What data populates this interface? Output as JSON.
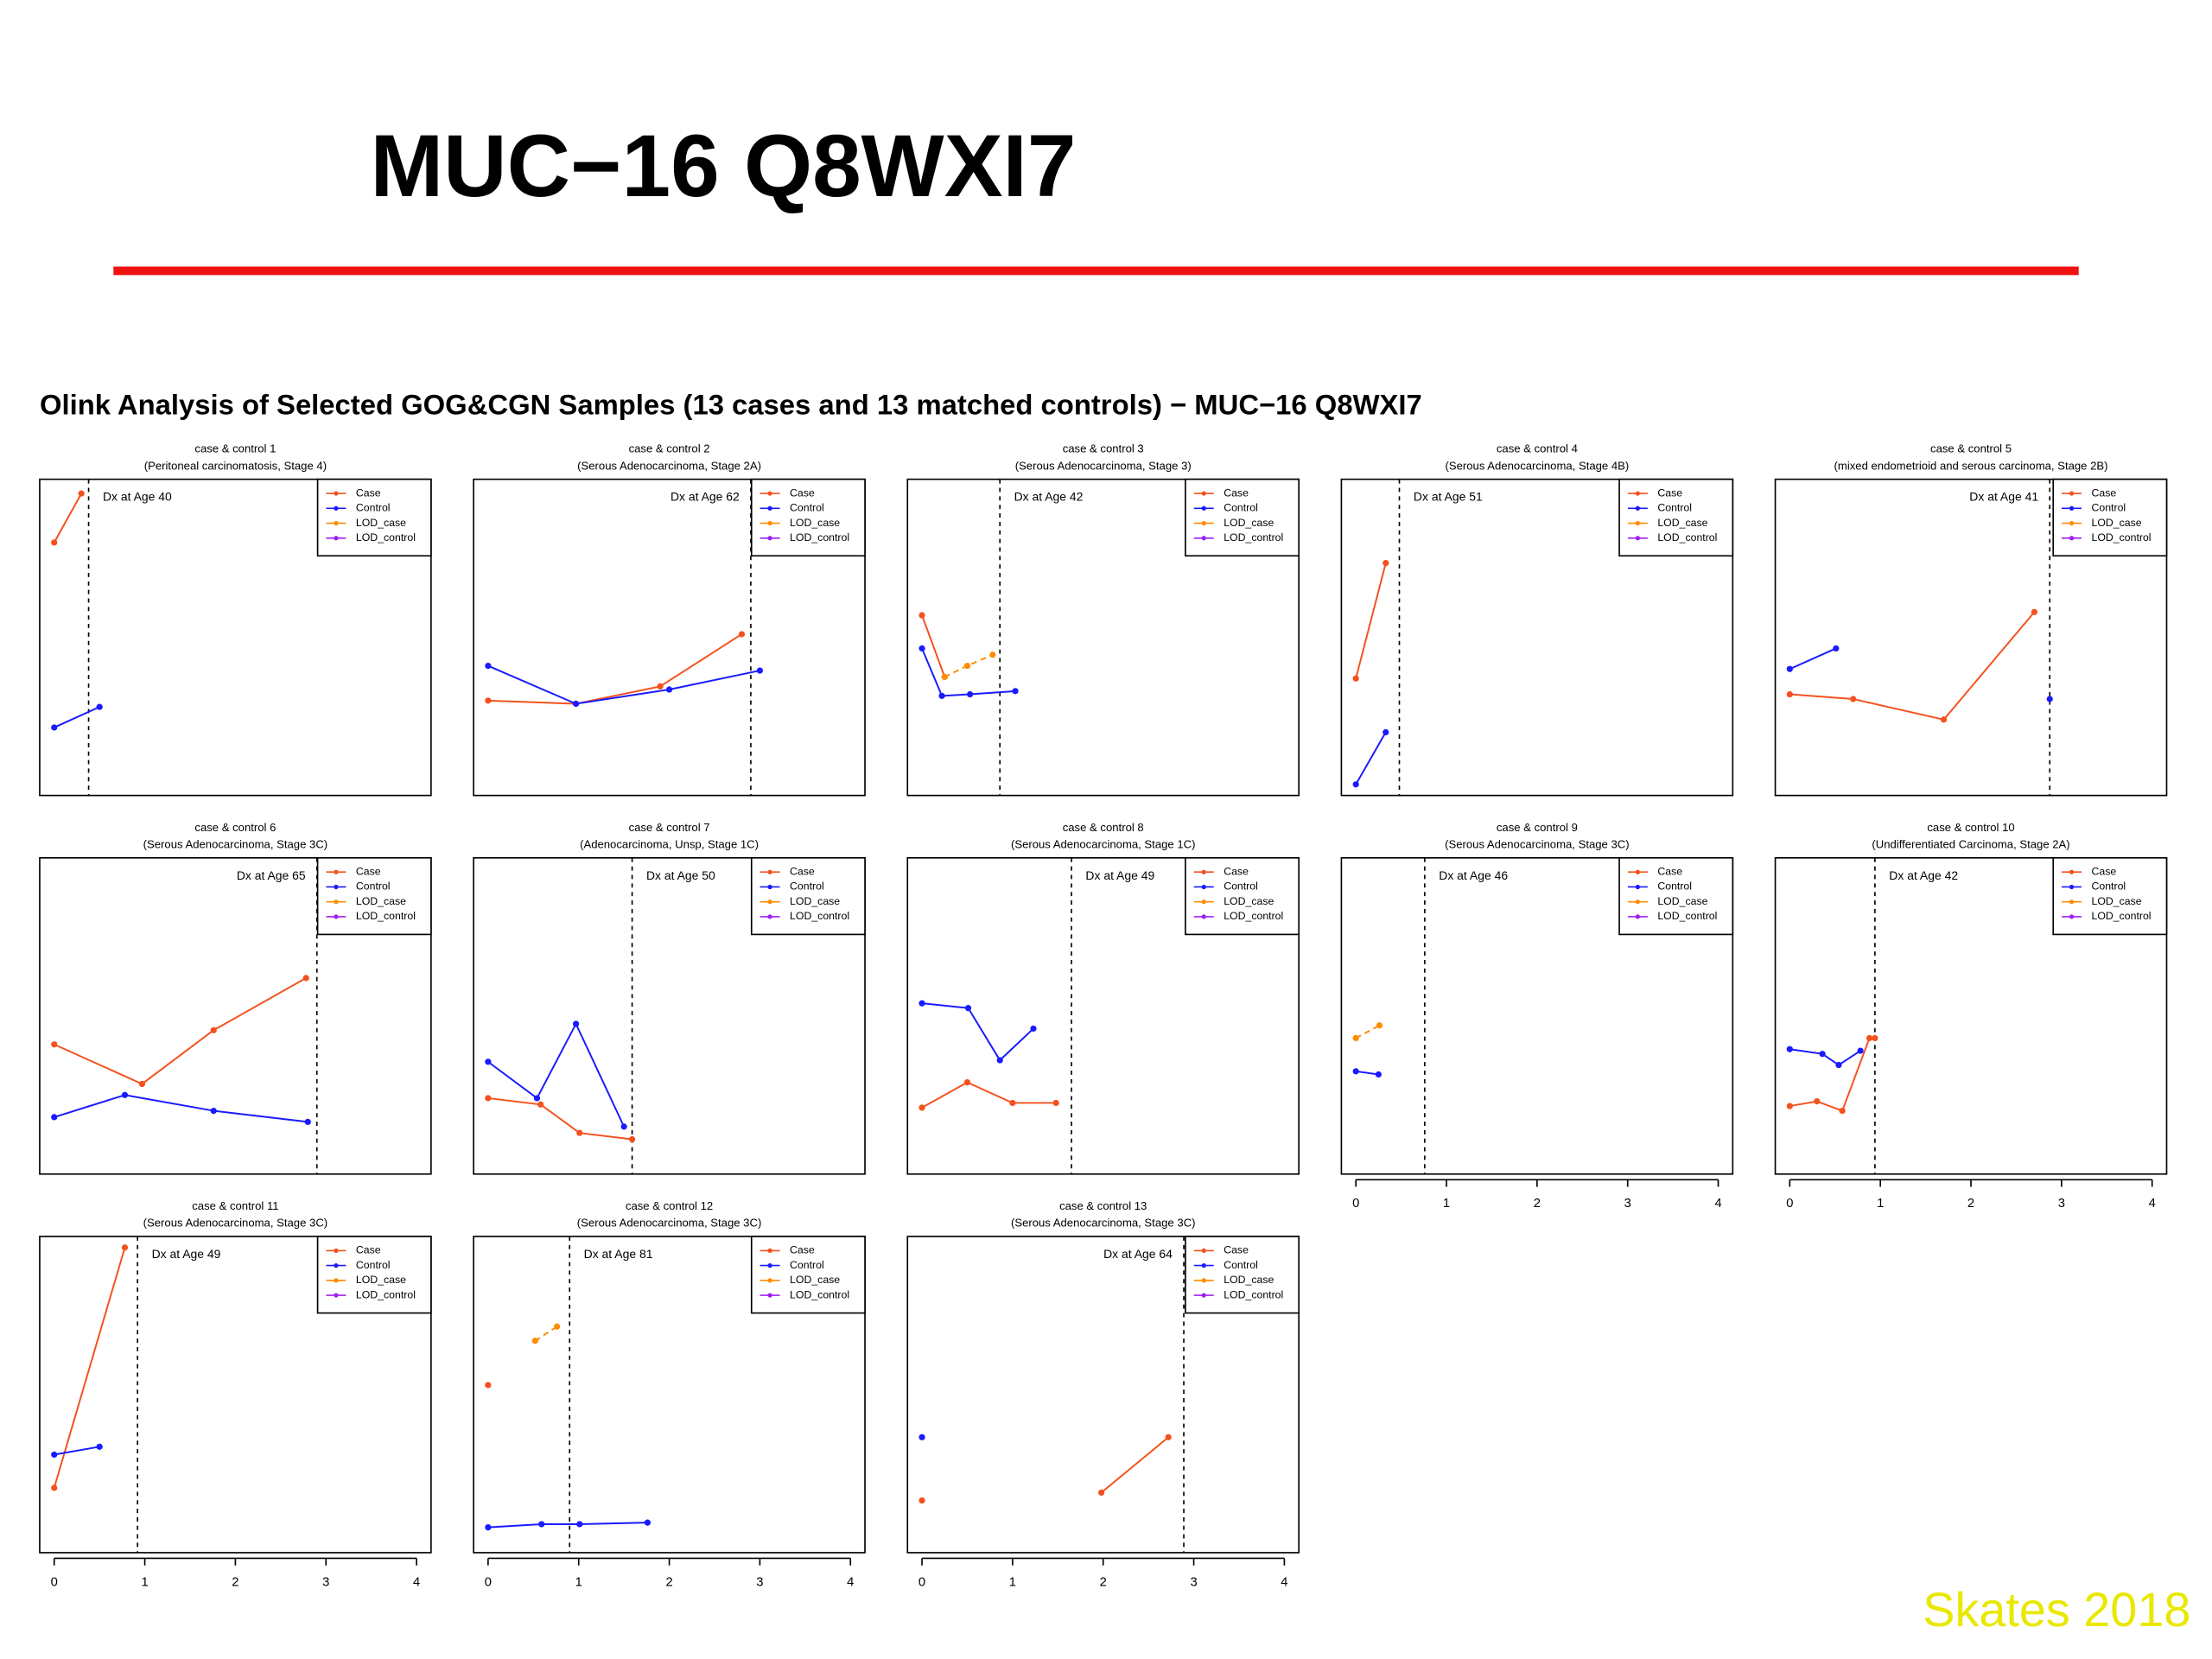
{
  "header": {
    "title": "MUC−16 Q8WXI7",
    "subtitle": "Olink Analysis of Selected GOG&CGN Samples (13 cases and 13 matched controls) − MUC−16 Q8WXI7"
  },
  "footer": "Skates 2018",
  "chart_data": [
    {
      "type": "line",
      "title": "case & control 1",
      "subtitle": "(Peritoneal carcinomatosis, Stage 4)",
      "annotation": "Dx at Age 40",
      "dx": 0.38,
      "xlim": [
        -0.16,
        4.16
      ],
      "ylim": [
        0,
        1
      ],
      "legend": "top-right",
      "series": [
        {
          "name": "Case",
          "color": "#f4511e",
          "x": [
            0,
            0.3
          ],
          "values": [
            0.8,
            0.955
          ]
        },
        {
          "name": "Control",
          "color": "#1a1aff",
          "x": [
            0,
            0.5
          ],
          "values": [
            0.215,
            0.28
          ]
        },
        {
          "name": "LOD_case",
          "color": "#ff8c00",
          "x": [],
          "values": [],
          "dashed": true
        },
        {
          "name": "LOD_control",
          "color": "#a020f0",
          "x": [],
          "values": [],
          "dashed": true
        }
      ]
    },
    {
      "type": "line",
      "title": "case & control 2",
      "subtitle": "(Serous Adenocarcinoma, Stage 2A)",
      "annotation": "Dx at Age 62",
      "dx": 2.9,
      "xlim": [
        -0.16,
        4.16
      ],
      "ylim": [
        0,
        1
      ],
      "legend": "top-right",
      "series": [
        {
          "name": "Case",
          "color": "#f4511e",
          "x": [
            0,
            0.97,
            1.9,
            2.8
          ],
          "values": [
            0.3,
            0.29,
            0.345,
            0.51
          ]
        },
        {
          "name": "Control",
          "color": "#1a1aff",
          "x": [
            0,
            0.97,
            2,
            3
          ],
          "values": [
            0.41,
            0.29,
            0.335,
            0.395
          ]
        },
        {
          "name": "LOD_case",
          "color": "#ff8c00",
          "x": [],
          "values": [],
          "dashed": true
        },
        {
          "name": "LOD_control",
          "color": "#a020f0",
          "x": [],
          "values": [],
          "dashed": true
        }
      ]
    },
    {
      "type": "line",
      "title": "case & control 3",
      "subtitle": "(Serous Adenocarcinoma, Stage 3)",
      "annotation": "Dx at Age 42",
      "dx": 0.86,
      "xlim": [
        -0.16,
        4.16
      ],
      "ylim": [
        0,
        1
      ],
      "legend": "top-right",
      "series": [
        {
          "name": "Case",
          "color": "#f4511e",
          "x": [
            0,
            0.25
          ],
          "values": [
            0.57,
            0.375
          ]
        },
        {
          "name": "Control",
          "color": "#1a1aff",
          "x": [
            0,
            0.22,
            0.53,
            1.03
          ],
          "values": [
            0.465,
            0.315,
            0.32,
            0.33
          ]
        },
        {
          "name": "LOD_case",
          "color": "#ff8c00",
          "x": [
            0.25,
            0.5,
            0.78
          ],
          "values": [
            0.375,
            0.41,
            0.445
          ],
          "dashed": true
        },
        {
          "name": "LOD_control",
          "color": "#a020f0",
          "x": [],
          "values": [],
          "dashed": true
        }
      ]
    },
    {
      "type": "line",
      "title": "case & control 4",
      "subtitle": "(Serous Adenocarcinoma, Stage 4B)",
      "annotation": "Dx at Age 51",
      "dx": 0.48,
      "xlim": [
        -0.16,
        4.16
      ],
      "ylim": [
        0,
        1
      ],
      "legend": "top-right",
      "series": [
        {
          "name": "Case",
          "color": "#f4511e",
          "x": [
            0,
            0.33
          ],
          "values": [
            0.37,
            0.735
          ]
        },
        {
          "name": "Control",
          "color": "#1a1aff",
          "x": [
            0,
            0.33
          ],
          "values": [
            0.035,
            0.2
          ]
        },
        {
          "name": "LOD_case",
          "color": "#ff8c00",
          "x": [],
          "values": [],
          "dashed": true
        },
        {
          "name": "LOD_control",
          "color": "#a020f0",
          "x": [],
          "values": [],
          "dashed": true
        }
      ]
    },
    {
      "type": "line",
      "title": "case & control 5",
      "subtitle": "(mixed endometrioid and serous carcinoma, Stage 2B)",
      "annotation": "Dx at Age 41",
      "dx": 2.87,
      "xlim": [
        -0.16,
        4.16
      ],
      "ylim": [
        0,
        1
      ],
      "legend": "top-right",
      "series": [
        {
          "name": "Case",
          "color": "#f4511e",
          "x": [
            0,
            0.7,
            1.7,
            2.7
          ],
          "values": [
            0.32,
            0.305,
            0.24,
            0.58
          ]
        },
        {
          "name": "Control",
          "color": "#1a1aff",
          "x": [
            0,
            0.51,
            null,
            2.87
          ],
          "values": [
            0.4,
            0.465,
            null,
            0.305
          ]
        },
        {
          "name": "LOD_case",
          "color": "#ff8c00",
          "x": [],
          "values": [],
          "dashed": true
        },
        {
          "name": "LOD_control",
          "color": "#a020f0",
          "x": [],
          "values": [],
          "dashed": true
        }
      ]
    },
    {
      "type": "line",
      "title": "case & control 6",
      "subtitle": "(Serous Adenocarcinoma, Stage 3C)",
      "annotation": "Dx at Age 65",
      "dx": 2.9,
      "xlim": [
        -0.16,
        4.16
      ],
      "ylim": [
        0,
        1
      ],
      "legend": "top-right",
      "series": [
        {
          "name": "Case",
          "color": "#f4511e",
          "x": [
            0,
            0.97,
            1.76,
            2.78
          ],
          "values": [
            0.41,
            0.285,
            0.455,
            0.62
          ]
        },
        {
          "name": "Control",
          "color": "#1a1aff",
          "x": [
            0,
            0.78,
            1.76,
            2.8
          ],
          "values": [
            0.18,
            0.25,
            0.2,
            0.165
          ]
        },
        {
          "name": "LOD_case",
          "color": "#ff8c00",
          "x": [],
          "values": [],
          "dashed": true
        },
        {
          "name": "LOD_control",
          "color": "#a020f0",
          "x": [],
          "values": [],
          "dashed": true
        }
      ]
    },
    {
      "type": "line",
      "title": "case & control 7",
      "subtitle": "(Adenocarcinoma, Unsp, Stage 1C)",
      "annotation": "Dx at Age 50",
      "dx": 1.59,
      "xlim": [
        -0.16,
        4.16
      ],
      "ylim": [
        0,
        1
      ],
      "legend": "top-right",
      "series": [
        {
          "name": "Case",
          "color": "#f4511e",
          "x": [
            0,
            0.58,
            1.01,
            1.59
          ],
          "values": [
            0.24,
            0.22,
            0.13,
            0.11
          ]
        },
        {
          "name": "Control",
          "color": "#1a1aff",
          "x": [
            0,
            0.54,
            0.97,
            1.5
          ],
          "values": [
            0.355,
            0.24,
            0.475,
            0.15
          ]
        },
        {
          "name": "LOD_case",
          "color": "#ff8c00",
          "x": [],
          "values": [],
          "dashed": true
        },
        {
          "name": "LOD_control",
          "color": "#a020f0",
          "x": [],
          "values": [],
          "dashed": true
        }
      ]
    },
    {
      "type": "line",
      "title": "case & control 8",
      "subtitle": "(Serous Adenocarcinoma, Stage 1C)",
      "annotation": "Dx at Age 49",
      "dx": 1.65,
      "xlim": [
        -0.16,
        4.16
      ],
      "ylim": [
        0,
        1
      ],
      "legend": "top-right",
      "series": [
        {
          "name": "Case",
          "color": "#f4511e",
          "x": [
            0,
            0.5,
            1.0,
            1.48
          ],
          "values": [
            0.21,
            0.29,
            0.225,
            0.225
          ]
        },
        {
          "name": "Control",
          "color": "#1a1aff",
          "x": [
            0,
            0.51,
            0.86,
            1.23
          ],
          "values": [
            0.54,
            0.525,
            0.36,
            0.46
          ]
        },
        {
          "name": "LOD_case",
          "color": "#ff8c00",
          "x": [],
          "values": [],
          "dashed": true
        },
        {
          "name": "LOD_control",
          "color": "#a020f0",
          "x": [],
          "values": [],
          "dashed": true
        }
      ]
    },
    {
      "type": "line",
      "title": "case & control 9",
      "subtitle": "(Serous Adenocarcinoma, Stage 3C)",
      "annotation": "Dx at Age 46",
      "dx": 0.76,
      "xlim": [
        -0.16,
        4.16
      ],
      "ylim": [
        0,
        1
      ],
      "xticks": [
        0,
        1,
        2,
        3,
        4
      ],
      "legend": "top-right",
      "series": [
        {
          "name": "Case",
          "color": "#f4511e",
          "x": [],
          "values": []
        },
        {
          "name": "Control",
          "color": "#1a1aff",
          "x": [
            0,
            0.25
          ],
          "values": [
            0.325,
            0.315
          ]
        },
        {
          "name": "LOD_case",
          "color": "#ff8c00",
          "x": [
            0,
            0.26
          ],
          "values": [
            0.43,
            0.47
          ],
          "dashed": true
        },
        {
          "name": "LOD_control",
          "color": "#a020f0",
          "x": [],
          "values": [],
          "dashed": true
        }
      ]
    },
    {
      "type": "line",
      "title": "case & control 10",
      "subtitle": "(Undifferentiated Carcinoma, Stage 2A)",
      "annotation": "Dx at Age 42",
      "dx": 0.94,
      "xlim": [
        -0.16,
        4.16
      ],
      "ylim": [
        0,
        1
      ],
      "xticks": [
        0,
        1,
        2,
        3,
        4
      ],
      "legend": "top-right",
      "series": [
        {
          "name": "Case",
          "color": "#f4511e",
          "x": [
            0,
            0.3,
            0.58,
            0.88,
            0.94
          ],
          "values": [
            0.215,
            0.23,
            0.2,
            0.43,
            0.43
          ]
        },
        {
          "name": "Control",
          "color": "#1a1aff",
          "x": [
            0,
            0.36,
            0.54,
            0.78
          ],
          "values": [
            0.395,
            0.38,
            0.345,
            0.39
          ]
        },
        {
          "name": "LOD_case",
          "color": "#ff8c00",
          "x": [],
          "values": [],
          "dashed": true
        },
        {
          "name": "LOD_control",
          "color": "#a020f0",
          "x": [],
          "values": [],
          "dashed": true
        }
      ]
    },
    {
      "type": "line",
      "title": "case & control 11",
      "subtitle": "(Serous Adenocarcinoma, Stage 3C)",
      "annotation": "Dx at Age 49",
      "dx": 0.92,
      "xlim": [
        -0.16,
        4.16
      ],
      "ylim": [
        0,
        1
      ],
      "xticks": [
        0,
        1,
        2,
        3,
        4
      ],
      "legend": "top-right",
      "series": [
        {
          "name": "Case",
          "color": "#f4511e",
          "x": [
            0,
            0.78
          ],
          "values": [
            0.205,
            0.965
          ]
        },
        {
          "name": "Control",
          "color": "#1a1aff",
          "x": [
            0,
            0.5
          ],
          "values": [
            0.31,
            0.335
          ]
        },
        {
          "name": "LOD_case",
          "color": "#ff8c00",
          "x": [],
          "values": [],
          "dashed": true
        },
        {
          "name": "LOD_control",
          "color": "#a020f0",
          "x": [],
          "values": [],
          "dashed": true
        }
      ]
    },
    {
      "type": "line",
      "title": "case & control 12",
      "subtitle": "(Serous Adenocarcinoma, Stage 3C)",
      "annotation": "Dx at Age 81",
      "dx": 0.9,
      "xlim": [
        -0.16,
        4.16
      ],
      "ylim": [
        0,
        1
      ],
      "xticks": [
        0,
        1,
        2,
        3,
        4
      ],
      "legend": "top-right",
      "series": [
        {
          "name": "Case",
          "color": "#f4511e",
          "x": [
            0
          ],
          "values": [
            0.53
          ]
        },
        {
          "name": "Control",
          "color": "#1a1aff",
          "x": [
            0,
            0.59,
            1.01,
            1.76
          ],
          "values": [
            0.08,
            0.09,
            0.09,
            0.095
          ]
        },
        {
          "name": "LOD_case",
          "color": "#ff8c00",
          "x": [
            0.52,
            0.76
          ],
          "values": [
            0.67,
            0.715
          ],
          "dashed": true
        },
        {
          "name": "LOD_control",
          "color": "#a020f0",
          "x": [],
          "values": [],
          "dashed": true
        }
      ]
    },
    {
      "type": "line",
      "title": "case & control 13",
      "subtitle": "(Serous Adenocarcinoma, Stage 3C)",
      "annotation": "Dx at Age 64",
      "dx": 2.89,
      "xlim": [
        -0.16,
        4.16
      ],
      "ylim": [
        0,
        1
      ],
      "xticks": [
        0,
        1,
        2,
        3,
        4
      ],
      "legend": "top-right",
      "series": [
        {
          "name": "Case",
          "color": "#f4511e",
          "x": [
            0,
            null,
            1.98,
            2.72
          ],
          "values": [
            0.165,
            null,
            0.19,
            0.365
          ]
        },
        {
          "name": "Control",
          "color": "#1a1aff",
          "x": [
            0
          ],
          "values": [
            0.365
          ]
        },
        {
          "name": "LOD_case",
          "color": "#ff8c00",
          "x": [],
          "values": [],
          "dashed": true
        },
        {
          "name": "LOD_control",
          "color": "#a020f0",
          "x": [],
          "values": [],
          "dashed": true
        }
      ]
    }
  ]
}
